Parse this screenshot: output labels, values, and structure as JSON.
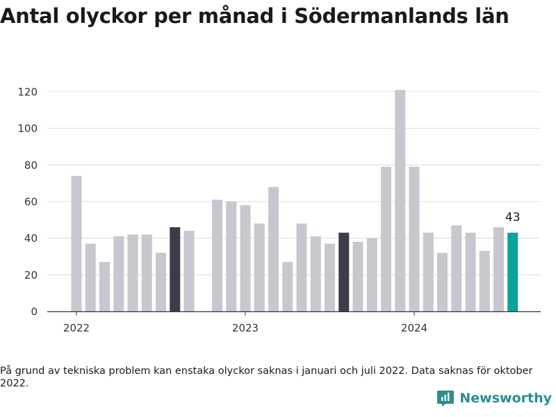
{
  "title": "Antal olyckor per månad i Södermanlands län",
  "footnote": "På grund av tekniska problem kan enstaka olyckor saknas i januari och juli 2022. Data saknas för oktober 2022.",
  "brand": {
    "name": "Newsworthy",
    "color": "#2a8f8f"
  },
  "chart_data": {
    "type": "bar",
    "title": "Antal olyckor per månad i Södermanlands län",
    "xlabel": "",
    "ylabel": "",
    "ylim": [
      0,
      120
    ],
    "yticks": [
      0,
      20,
      40,
      60,
      80,
      100,
      120
    ],
    "xtick_labels": [
      {
        "label": "2022",
        "month": "2022-01"
      },
      {
        "label": "2023",
        "month": "2023-01"
      },
      {
        "label": "2024",
        "month": "2024-01"
      }
    ],
    "grid": true,
    "annotation": {
      "month": "2024-08",
      "text": "43"
    },
    "colors": {
      "default": "#c8c7cf",
      "highlight": "#3d3c4a",
      "latest": "#0aa39a",
      "grid": "#dcdcdc",
      "axis": "#333333"
    },
    "points": [
      {
        "month": "2022-01",
        "value": 74,
        "style": "default"
      },
      {
        "month": "2022-02",
        "value": 37,
        "style": "default"
      },
      {
        "month": "2022-03",
        "value": 27,
        "style": "default"
      },
      {
        "month": "2022-04",
        "value": 41,
        "style": "default"
      },
      {
        "month": "2022-05",
        "value": 42,
        "style": "default"
      },
      {
        "month": "2022-06",
        "value": 42,
        "style": "default"
      },
      {
        "month": "2022-07",
        "value": 32,
        "style": "default"
      },
      {
        "month": "2022-08",
        "value": 46,
        "style": "highlight"
      },
      {
        "month": "2022-09",
        "value": 44,
        "style": "default"
      },
      {
        "month": "2022-10",
        "value": null,
        "style": "default"
      },
      {
        "month": "2022-11",
        "value": 61,
        "style": "default"
      },
      {
        "month": "2022-12",
        "value": 60,
        "style": "default"
      },
      {
        "month": "2023-01",
        "value": 58,
        "style": "default"
      },
      {
        "month": "2023-02",
        "value": 48,
        "style": "default"
      },
      {
        "month": "2023-03",
        "value": 68,
        "style": "default"
      },
      {
        "month": "2023-04",
        "value": 27,
        "style": "default"
      },
      {
        "month": "2023-05",
        "value": 48,
        "style": "default"
      },
      {
        "month": "2023-06",
        "value": 41,
        "style": "default"
      },
      {
        "month": "2023-07",
        "value": 37,
        "style": "default"
      },
      {
        "month": "2023-08",
        "value": 43,
        "style": "highlight"
      },
      {
        "month": "2023-09",
        "value": 38,
        "style": "default"
      },
      {
        "month": "2023-10",
        "value": 40,
        "style": "default"
      },
      {
        "month": "2023-11",
        "value": 79,
        "style": "default"
      },
      {
        "month": "2023-12",
        "value": 121,
        "style": "default"
      },
      {
        "month": "2024-01",
        "value": 79,
        "style": "default"
      },
      {
        "month": "2024-02",
        "value": 43,
        "style": "default"
      },
      {
        "month": "2024-03",
        "value": 32,
        "style": "default"
      },
      {
        "month": "2024-04",
        "value": 47,
        "style": "default"
      },
      {
        "month": "2024-05",
        "value": 43,
        "style": "default"
      },
      {
        "month": "2024-06",
        "value": 33,
        "style": "default"
      },
      {
        "month": "2024-07",
        "value": 46,
        "style": "default"
      },
      {
        "month": "2024-08",
        "value": 43,
        "style": "latest"
      }
    ]
  }
}
